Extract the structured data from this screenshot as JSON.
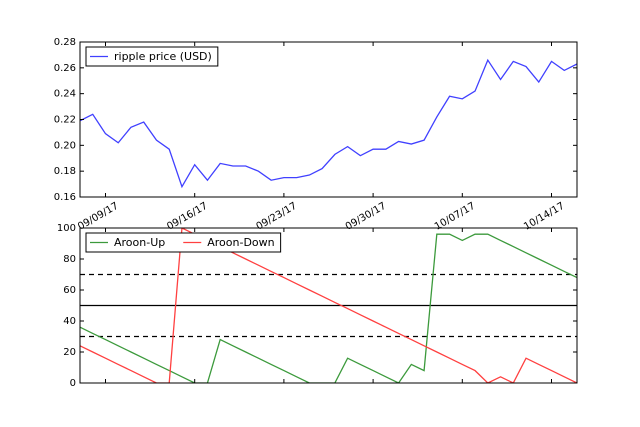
{
  "chart_data": [
    {
      "type": "line",
      "x": [
        "2017-09-07",
        "2017-09-08",
        "2017-09-09",
        "2017-09-10",
        "2017-09-11",
        "2017-09-12",
        "2017-09-13",
        "2017-09-14",
        "2017-09-15",
        "2017-09-16",
        "2017-09-17",
        "2017-09-18",
        "2017-09-19",
        "2017-09-20",
        "2017-09-21",
        "2017-09-22",
        "2017-09-23",
        "2017-09-24",
        "2017-09-25",
        "2017-09-26",
        "2017-09-27",
        "2017-09-28",
        "2017-09-29",
        "2017-09-30",
        "2017-10-01",
        "2017-10-02",
        "2017-10-03",
        "2017-10-04",
        "2017-10-05",
        "2017-10-06",
        "2017-10-07",
        "2017-10-08",
        "2017-10-09",
        "2017-10-10",
        "2017-10-11",
        "2017-10-12",
        "2017-10-13",
        "2017-10-14",
        "2017-10-15",
        "2017-10-16"
      ],
      "series": [
        {
          "name": "ripple price (USD)",
          "color": "#4040ff",
          "values": [
            0.219,
            0.224,
            0.209,
            0.202,
            0.214,
            0.218,
            0.204,
            0.197,
            0.168,
            0.185,
            0.173,
            0.186,
            0.184,
            0.184,
            0.18,
            0.173,
            0.175,
            0.175,
            0.177,
            0.182,
            0.193,
            0.199,
            0.192,
            0.197,
            0.197,
            0.203,
            0.201,
            0.204,
            0.222,
            0.238,
            0.236,
            0.242,
            0.266,
            0.251,
            0.265,
            0.261,
            0.249,
            0.265,
            0.258,
            0.263
          ]
        }
      ],
      "xlim": [
        "2017-09-07",
        "2017-10-16"
      ],
      "xticks": [
        {
          "value": "2017-09-09",
          "label": "09/09/17"
        },
        {
          "value": "2017-09-16",
          "label": "09/16/17"
        },
        {
          "value": "2017-09-23",
          "label": "09/23/17"
        },
        {
          "value": "2017-09-30",
          "label": "09/30/17"
        },
        {
          "value": "2017-10-07",
          "label": "10/07/17"
        },
        {
          "value": "2017-10-14",
          "label": "10/14/17"
        }
      ],
      "ylim": [
        0.16,
        0.28
      ],
      "yticks": [
        0.16,
        0.18,
        {
          "value": 0.2,
          "label": "0.20"
        },
        0.22,
        0.24,
        0.26,
        0.28
      ],
      "legend": "upper left"
    },
    {
      "type": "line",
      "x": [
        "2017-09-07",
        "2017-09-08",
        "2017-09-09",
        "2017-09-10",
        "2017-09-11",
        "2017-09-12",
        "2017-09-13",
        "2017-09-14",
        "2017-09-15",
        "2017-09-16",
        "2017-09-17",
        "2017-09-18",
        "2017-09-19",
        "2017-09-20",
        "2017-09-21",
        "2017-09-22",
        "2017-09-23",
        "2017-09-24",
        "2017-09-25",
        "2017-09-26",
        "2017-09-27",
        "2017-09-28",
        "2017-09-29",
        "2017-09-30",
        "2017-10-01",
        "2017-10-02",
        "2017-10-03",
        "2017-10-04",
        "2017-10-05",
        "2017-10-06",
        "2017-10-07",
        "2017-10-08",
        "2017-10-09",
        "2017-10-10",
        "2017-10-11",
        "2017-10-12",
        "2017-10-13",
        "2017-10-14",
        "2017-10-15",
        "2017-10-16"
      ],
      "series": [
        {
          "name": "Aroon-Up",
          "color": "#3c9a3c",
          "values": [
            36,
            32,
            28,
            24,
            20,
            16,
            12,
            8,
            4,
            0,
            0,
            28,
            24,
            20,
            16,
            12,
            8,
            4,
            0,
            0,
            0,
            16,
            12,
            8,
            4,
            0,
            12,
            8,
            96,
            96,
            92,
            96,
            96,
            92,
            88,
            84,
            80,
            76,
            72,
            68
          ]
        },
        {
          "name": "Aroon-Down",
          "color": "#ff4040",
          "values": [
            24,
            20,
            16,
            12,
            8,
            4,
            0,
            0,
            100,
            96,
            92,
            88,
            84,
            80,
            76,
            72,
            68,
            64,
            60,
            56,
            52,
            48,
            44,
            40,
            36,
            32,
            28,
            24,
            20,
            16,
            12,
            8,
            0,
            4,
            0,
            16,
            12,
            8,
            4,
            0
          ]
        }
      ],
      "xlim": [
        "2017-09-07",
        "2017-10-16"
      ],
      "xticks": [
        "2017-09-09",
        "2017-09-16",
        "2017-09-23",
        "2017-09-30",
        "2017-10-07",
        "2017-10-14"
      ],
      "ylim": [
        0,
        100
      ],
      "yticks": [
        0,
        20,
        40,
        60,
        80,
        100
      ],
      "hlines": [
        {
          "value": 30,
          "style": "dashed"
        },
        {
          "value": 50,
          "style": "solid"
        },
        {
          "value": 70,
          "style": "dashed"
        }
      ],
      "legend": "upper left"
    }
  ]
}
